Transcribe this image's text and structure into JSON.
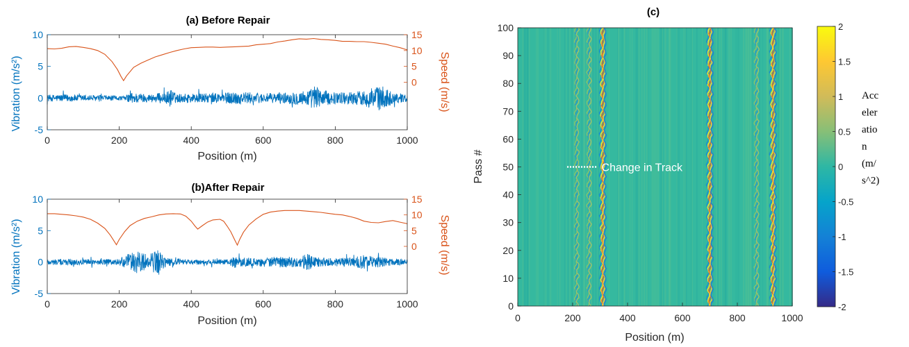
{
  "chart_data": [
    {
      "id": "a",
      "type": "line",
      "title": "(a) Before Repair",
      "xlabel": "Position (m)",
      "ylabel_left": "Vibration (m/s²)",
      "ylabel_right": "Speed (m/s)",
      "xlim": [
        0,
        1000
      ],
      "ylim_left": [
        -5,
        10
      ],
      "ylim_right": [
        -15,
        15
      ],
      "xticks": [
        "0",
        "200",
        "400",
        "600",
        "800",
        "1000"
      ],
      "yticks_left": [
        "-5",
        "0",
        "5",
        "10"
      ],
      "yticks_right": [
        "0",
        "5",
        "10",
        "15"
      ],
      "colors": {
        "vibration": "#0072BD",
        "speed": "#D95319"
      },
      "series": [
        {
          "name": "Speed",
          "axis": "right",
          "x": [
            0,
            20,
            40,
            60,
            80,
            100,
            120,
            140,
            160,
            180,
            195,
            205,
            212,
            220,
            240,
            260,
            280,
            300,
            320,
            340,
            360,
            380,
            400,
            420,
            440,
            460,
            480,
            500,
            520,
            540,
            560,
            580,
            600,
            620,
            640,
            660,
            680,
            700,
            720,
            740,
            760,
            780,
            800,
            820,
            840,
            860,
            880,
            900,
            920,
            940,
            960,
            980,
            1000
          ],
          "y": [
            10.6,
            10.5,
            10.7,
            11.2,
            11.3,
            11.0,
            10.6,
            10.0,
            8.8,
            6.5,
            4.0,
            1.8,
            0.5,
            2.0,
            4.7,
            6.0,
            7.0,
            8.0,
            8.7,
            9.4,
            10.0,
            10.5,
            10.9,
            11.0,
            11.1,
            11.1,
            11.0,
            11.1,
            11.2,
            11.3,
            11.4,
            11.8,
            12.0,
            12.2,
            12.7,
            13.0,
            13.4,
            13.7,
            13.6,
            13.8,
            13.5,
            13.4,
            13.2,
            12.9,
            12.9,
            12.8,
            12.8,
            12.6,
            12.3,
            12.0,
            11.4,
            10.9,
            10.2
          ]
        },
        {
          "name": "Vibration",
          "axis": "left",
          "envelope_x": [
            0,
            50,
            100,
            150,
            200,
            215,
            230,
            250,
            280,
            300,
            330,
            345,
            350,
            360,
            400,
            450,
            500,
            520,
            550,
            580,
            600,
            650,
            700,
            730,
            745,
            760,
            800,
            850,
            880,
            900,
            920,
            940,
            960,
            1000
          ],
          "envelope_amp": [
            0.7,
            0.8,
            0.7,
            0.6,
            0.5,
            0.4,
            1.2,
            1.1,
            0.8,
            1.0,
            1.2,
            2.2,
            1.4,
            0.9,
            1.0,
            1.0,
            1.2,
            1.4,
            1.3,
            1.1,
            1.0,
            1.1,
            1.5,
            1.8,
            2.8,
            1.8,
            1.2,
            1.4,
            1.6,
            2.2,
            2.6,
            2.3,
            1.2,
            0.8
          ]
        }
      ]
    },
    {
      "id": "b",
      "type": "line",
      "title": "(b)After Repair",
      "xlabel": "Position (m)",
      "ylabel_left": "Vibration (m/s²)",
      "ylabel_right": "Speed (m/s)",
      "xlim": [
        0,
        1000
      ],
      "ylim_left": [
        -5,
        10
      ],
      "ylim_right": [
        -15,
        15
      ],
      "xticks": [
        "0",
        "200",
        "400",
        "600",
        "800",
        "1000"
      ],
      "yticks_left": [
        "-5",
        "0",
        "5",
        "10"
      ],
      "yticks_right": [
        "0",
        "5",
        "10",
        "15"
      ],
      "colors": {
        "vibration": "#0072BD",
        "speed": "#D95319"
      },
      "series": [
        {
          "name": "Speed",
          "axis": "right",
          "x": [
            0,
            20,
            40,
            60,
            80,
            100,
            120,
            140,
            160,
            175,
            185,
            192,
            200,
            215,
            230,
            250,
            270,
            290,
            310,
            330,
            350,
            370,
            385,
            400,
            410,
            418,
            430,
            445,
            460,
            480,
            490,
            500,
            510,
            520,
            528,
            535,
            545,
            560,
            580,
            600,
            620,
            640,
            660,
            680,
            700,
            720,
            740,
            760,
            780,
            800,
            820,
            840,
            860,
            880,
            900,
            920,
            940,
            960,
            980,
            1000
          ],
          "y": [
            10.4,
            10.4,
            10.2,
            10.0,
            9.7,
            9.3,
            8.6,
            7.4,
            5.7,
            3.6,
            1.8,
            0.5,
            2.2,
            4.7,
            6.6,
            8.0,
            8.9,
            9.4,
            10.0,
            10.3,
            10.4,
            10.3,
            9.6,
            8.0,
            6.5,
            5.5,
            6.5,
            7.7,
            8.4,
            8.6,
            8.0,
            6.4,
            4.6,
            2.2,
            0.4,
            2.3,
            4.5,
            6.8,
            8.7,
            10.2,
            10.9,
            11.2,
            11.4,
            11.4,
            11.4,
            11.2,
            11.0,
            10.8,
            10.5,
            10.2,
            10.0,
            9.5,
            8.9,
            8.0,
            7.6,
            7.5,
            7.9,
            8.2,
            7.7,
            7.2
          ]
        },
        {
          "name": "Vibration",
          "axis": "left",
          "envelope_x": [
            0,
            50,
            100,
            150,
            200,
            220,
            240,
            260,
            280,
            300,
            310,
            320,
            340,
            360,
            400,
            450,
            500,
            520,
            540,
            560,
            600,
            650,
            700,
            720,
            750,
            800,
            850,
            870,
            890,
            910,
            930,
            960,
            1000
          ],
          "envelope_amp": [
            0.6,
            0.7,
            0.6,
            0.6,
            0.7,
            1.5,
            2.6,
            2.0,
            1.6,
            2.4,
            2.9,
            1.5,
            0.8,
            0.7,
            0.5,
            0.6,
            0.6,
            1.2,
            1.0,
            0.8,
            1.0,
            1.2,
            1.0,
            1.8,
            1.0,
            0.8,
            1.0,
            1.4,
            1.6,
            1.2,
            1.0,
            0.7,
            0.6
          ]
        }
      ]
    },
    {
      "id": "c",
      "type": "heatmap",
      "title": "(c)",
      "xlabel": "Position (m)",
      "ylabel": "Pass #",
      "xlim": [
        0,
        1000
      ],
      "ylim": [
        0,
        100
      ],
      "xticks": [
        "0",
        "200",
        "400",
        "600",
        "800",
        "1000"
      ],
      "yticks": [
        "0",
        "10",
        "20",
        "30",
        "40",
        "50",
        "60",
        "70",
        "80",
        "90",
        "100"
      ],
      "colorbar": {
        "title": "Acceleration (m/s^2)",
        "title_lines": [
          "Acc",
          "eler",
          "atio",
          "n",
          "(m/",
          "s^2)"
        ],
        "clim": [
          -2,
          2
        ],
        "ticks": [
          "-2",
          "-1.5",
          "-1",
          "-0.5",
          "0",
          "0.5",
          "1",
          "1.5",
          "2"
        ],
        "colormap": "parula"
      },
      "dominant_bands_position_m": [
        310,
        700,
        930
      ],
      "secondary_bands_position_m": [
        215,
        260,
        870
      ],
      "annotation": {
        "text": "Change in Track",
        "pass": 50,
        "x_start": 180,
        "x_end": 290
      }
    }
  ]
}
